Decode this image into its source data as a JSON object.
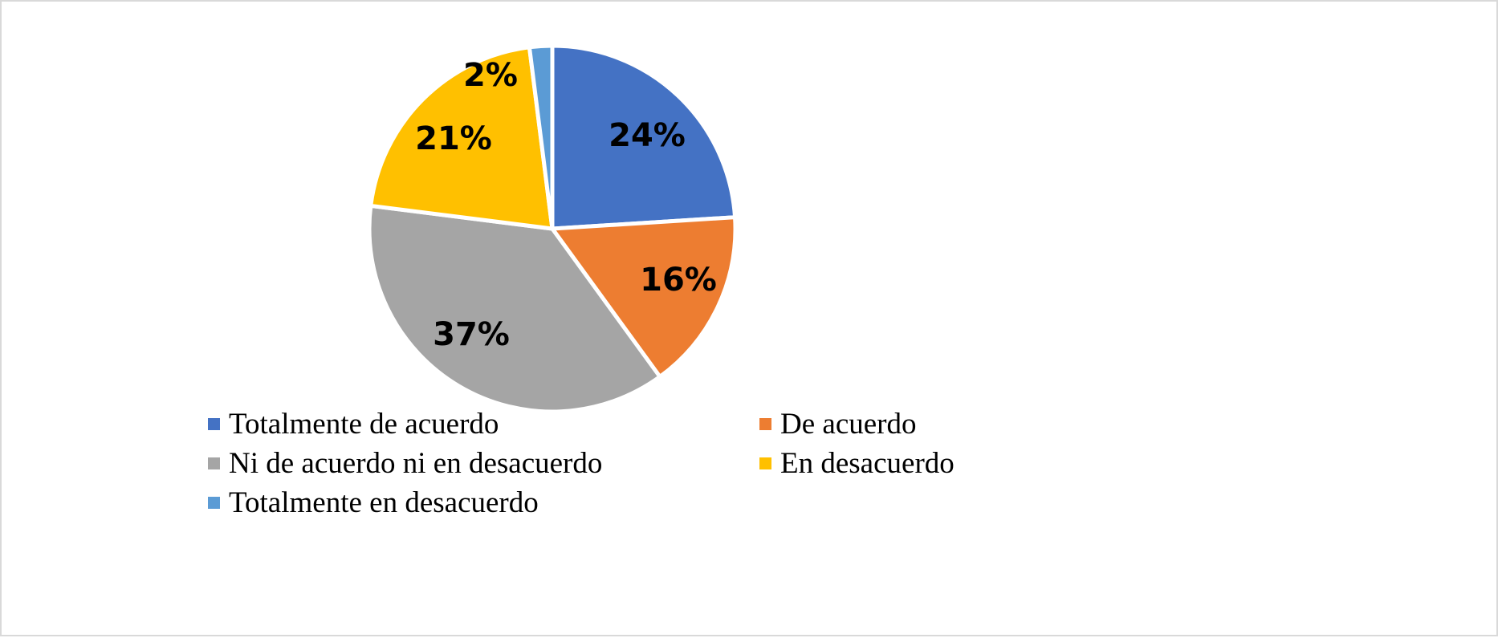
{
  "chart_data": {
    "type": "pie",
    "categories": [
      "Totalmente de acuerdo",
      "De acuerdo",
      "Ni de acuerdo ni en desacuerdo",
      "En desacuerdo",
      "Totalmente en desacuerdo"
    ],
    "values": [
      24,
      16,
      37,
      21,
      2
    ],
    "data_labels": [
      "24%",
      "16%",
      "37%",
      "21%",
      "2%"
    ],
    "colors": [
      "#4472C4",
      "#ED7D31",
      "#A5A5A5",
      "#FFC000",
      "#5B9BD5"
    ],
    "start_angle_deg": 0,
    "direction": "clockwise",
    "legend_position": "bottom",
    "title": ""
  }
}
